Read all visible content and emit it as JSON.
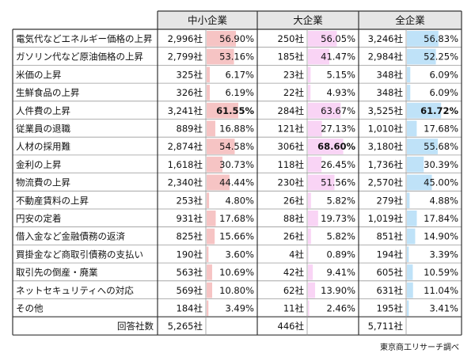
{
  "source": "東京商工リサーチ調べ",
  "chart_data": {
    "type": "table",
    "groups": [
      "中小企業",
      "大企業",
      "全企業"
    ],
    "unit": "社",
    "rows": [
      {
        "label": "電気代などエネルギー価格の上昇",
        "cells": [
          {
            "count": "2,996社",
            "pct": "56.90%",
            "value": 56.9
          },
          {
            "count": "250社",
            "pct": "56.05%",
            "value": 56.05
          },
          {
            "count": "3,246社",
            "pct": "56.83%",
            "value": 56.83
          }
        ]
      },
      {
        "label": "ガソリン代など原油価格の上昇",
        "cells": [
          {
            "count": "2,799社",
            "pct": "53.16%",
            "value": 53.16
          },
          {
            "count": "185社",
            "pct": "41.47%",
            "value": 41.47
          },
          {
            "count": "2,984社",
            "pct": "52.25%",
            "value": 52.25
          }
        ]
      },
      {
        "label": "米価の上昇",
        "cells": [
          {
            "count": "325社",
            "pct": "6.17%",
            "value": 6.17
          },
          {
            "count": "23社",
            "pct": "5.15%",
            "value": 5.15
          },
          {
            "count": "348社",
            "pct": "6.09%",
            "value": 6.09
          }
        ]
      },
      {
        "label": "生鮮食品の上昇",
        "cells": [
          {
            "count": "326社",
            "pct": "6.19%",
            "value": 6.19
          },
          {
            "count": "22社",
            "pct": "4.93%",
            "value": 4.93
          },
          {
            "count": "348社",
            "pct": "6.09%",
            "value": 6.09
          }
        ]
      },
      {
        "label": "人件費の上昇",
        "cells": [
          {
            "count": "3,241社",
            "pct": "61.55%",
            "value": 61.55,
            "bold": true
          },
          {
            "count": "284社",
            "pct": "63.67%",
            "value": 63.67
          },
          {
            "count": "3,525社",
            "pct": "61.72%",
            "value": 61.72,
            "bold": true
          }
        ]
      },
      {
        "label": "従業員の退職",
        "cells": [
          {
            "count": "889社",
            "pct": "16.88%",
            "value": 16.88
          },
          {
            "count": "121社",
            "pct": "27.13%",
            "value": 27.13
          },
          {
            "count": "1,010社",
            "pct": "17.68%",
            "value": 17.68
          }
        ]
      },
      {
        "label": "人材の採用難",
        "cells": [
          {
            "count": "2,874社",
            "pct": "54.58%",
            "value": 54.58
          },
          {
            "count": "306社",
            "pct": "68.60%",
            "value": 68.6,
            "bold": true
          },
          {
            "count": "3,180社",
            "pct": "55.68%",
            "value": 55.68
          }
        ]
      },
      {
        "label": "金利の上昇",
        "cells": [
          {
            "count": "1,618社",
            "pct": "30.73%",
            "value": 30.73
          },
          {
            "count": "118社",
            "pct": "26.45%",
            "value": 26.45
          },
          {
            "count": "1,736社",
            "pct": "30.39%",
            "value": 30.39
          }
        ]
      },
      {
        "label": "物流費の上昇",
        "cells": [
          {
            "count": "2,340社",
            "pct": "44.44%",
            "value": 44.44
          },
          {
            "count": "230社",
            "pct": "51.56%",
            "value": 51.56
          },
          {
            "count": "2,570社",
            "pct": "45.00%",
            "value": 45.0
          }
        ]
      },
      {
        "label": "不動産賃料の上昇",
        "cells": [
          {
            "count": "253社",
            "pct": "4.80%",
            "value": 4.8
          },
          {
            "count": "26社",
            "pct": "5.82%",
            "value": 5.82
          },
          {
            "count": "279社",
            "pct": "4.88%",
            "value": 4.88
          }
        ]
      },
      {
        "label": "円安の定着",
        "cells": [
          {
            "count": "931社",
            "pct": "17.68%",
            "value": 17.68
          },
          {
            "count": "88社",
            "pct": "19.73%",
            "value": 19.73
          },
          {
            "count": "1,019社",
            "pct": "17.84%",
            "value": 17.84
          }
        ]
      },
      {
        "label": "借入金など金融債務の返済",
        "cells": [
          {
            "count": "825社",
            "pct": "15.66%",
            "value": 15.66
          },
          {
            "count": "26社",
            "pct": "5.82%",
            "value": 5.82
          },
          {
            "count": "851社",
            "pct": "14.90%",
            "value": 14.9
          }
        ]
      },
      {
        "label": "買掛金など商取引債務の支払い",
        "cells": [
          {
            "count": "190社",
            "pct": "3.60%",
            "value": 3.6
          },
          {
            "count": "4社",
            "pct": "0.89%",
            "value": 0.89
          },
          {
            "count": "194社",
            "pct": "3.39%",
            "value": 3.39
          }
        ]
      },
      {
        "label": "取引先の倒産・廃業",
        "cells": [
          {
            "count": "563社",
            "pct": "10.69%",
            "value": 10.69
          },
          {
            "count": "42社",
            "pct": "9.41%",
            "value": 9.41
          },
          {
            "count": "605社",
            "pct": "10.59%",
            "value": 10.59
          }
        ]
      },
      {
        "label": "ネットセキュリティへの対応",
        "cells": [
          {
            "count": "569社",
            "pct": "10.80%",
            "value": 10.8
          },
          {
            "count": "62社",
            "pct": "13.90%",
            "value": 13.9
          },
          {
            "count": "631社",
            "pct": "11.04%",
            "value": 11.04
          }
        ]
      },
      {
        "label": "その他",
        "cells": [
          {
            "count": "184社",
            "pct": "3.49%",
            "value": 3.49
          },
          {
            "count": "11社",
            "pct": "2.46%",
            "value": 2.46
          },
          {
            "count": "195社",
            "pct": "3.41%",
            "value": 3.41
          }
        ]
      }
    ],
    "total": {
      "label": "回答社数",
      "counts": [
        "5,265社",
        "446社",
        "5,711社"
      ]
    },
    "bar_colors": [
      "#f6c4c4",
      "#f9d4f5",
      "#bfe2f8"
    ],
    "header_bg": "#e6e6e6",
    "bar_scale_max": 100
  }
}
